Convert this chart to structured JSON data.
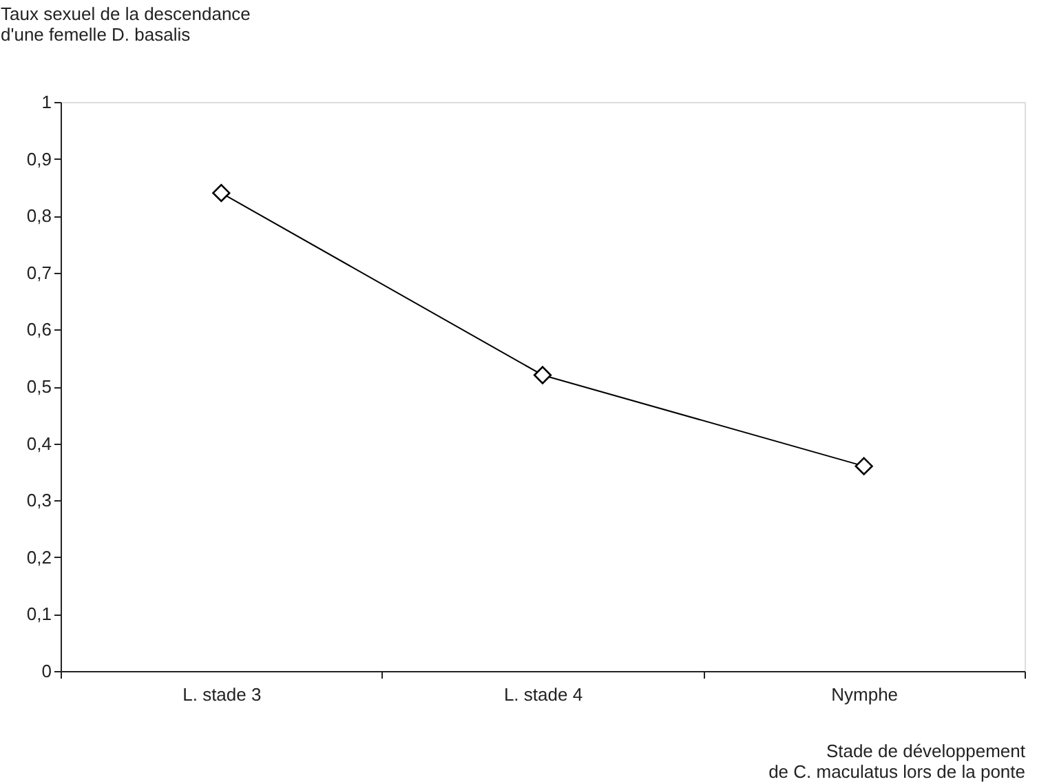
{
  "chart_data": {
    "type": "line",
    "ylabel": [
      "Taux sexuel de la descendance",
      "d'une femelle D. basalis"
    ],
    "xlabel": [
      "Stade de développement",
      "de C. maculatus lors de la ponte"
    ],
    "categories": [
      "L. stade 3",
      "L. stade 4",
      "Nymphe"
    ],
    "values": [
      0.84,
      0.52,
      0.36
    ],
    "color": "#000000",
    "marker": "diamond",
    "line_style": "solid",
    "ylim": [
      0,
      1
    ],
    "yticks": [
      {
        "value": 0,
        "label": "0"
      },
      {
        "value": 0.1,
        "label": "0,1"
      },
      {
        "value": 0.2,
        "label": "0,2"
      },
      {
        "value": 0.3,
        "label": "0,3"
      },
      {
        "value": 0.4,
        "label": "0,4"
      },
      {
        "value": 0.5,
        "label": "0,5"
      },
      {
        "value": 0.6,
        "label": "0,6"
      },
      {
        "value": 0.7,
        "label": "0,7"
      },
      {
        "value": 0.8,
        "label": "0,8"
      },
      {
        "value": 0.9,
        "label": "0,9"
      },
      {
        "value": 1,
        "label": "1"
      }
    ]
  }
}
